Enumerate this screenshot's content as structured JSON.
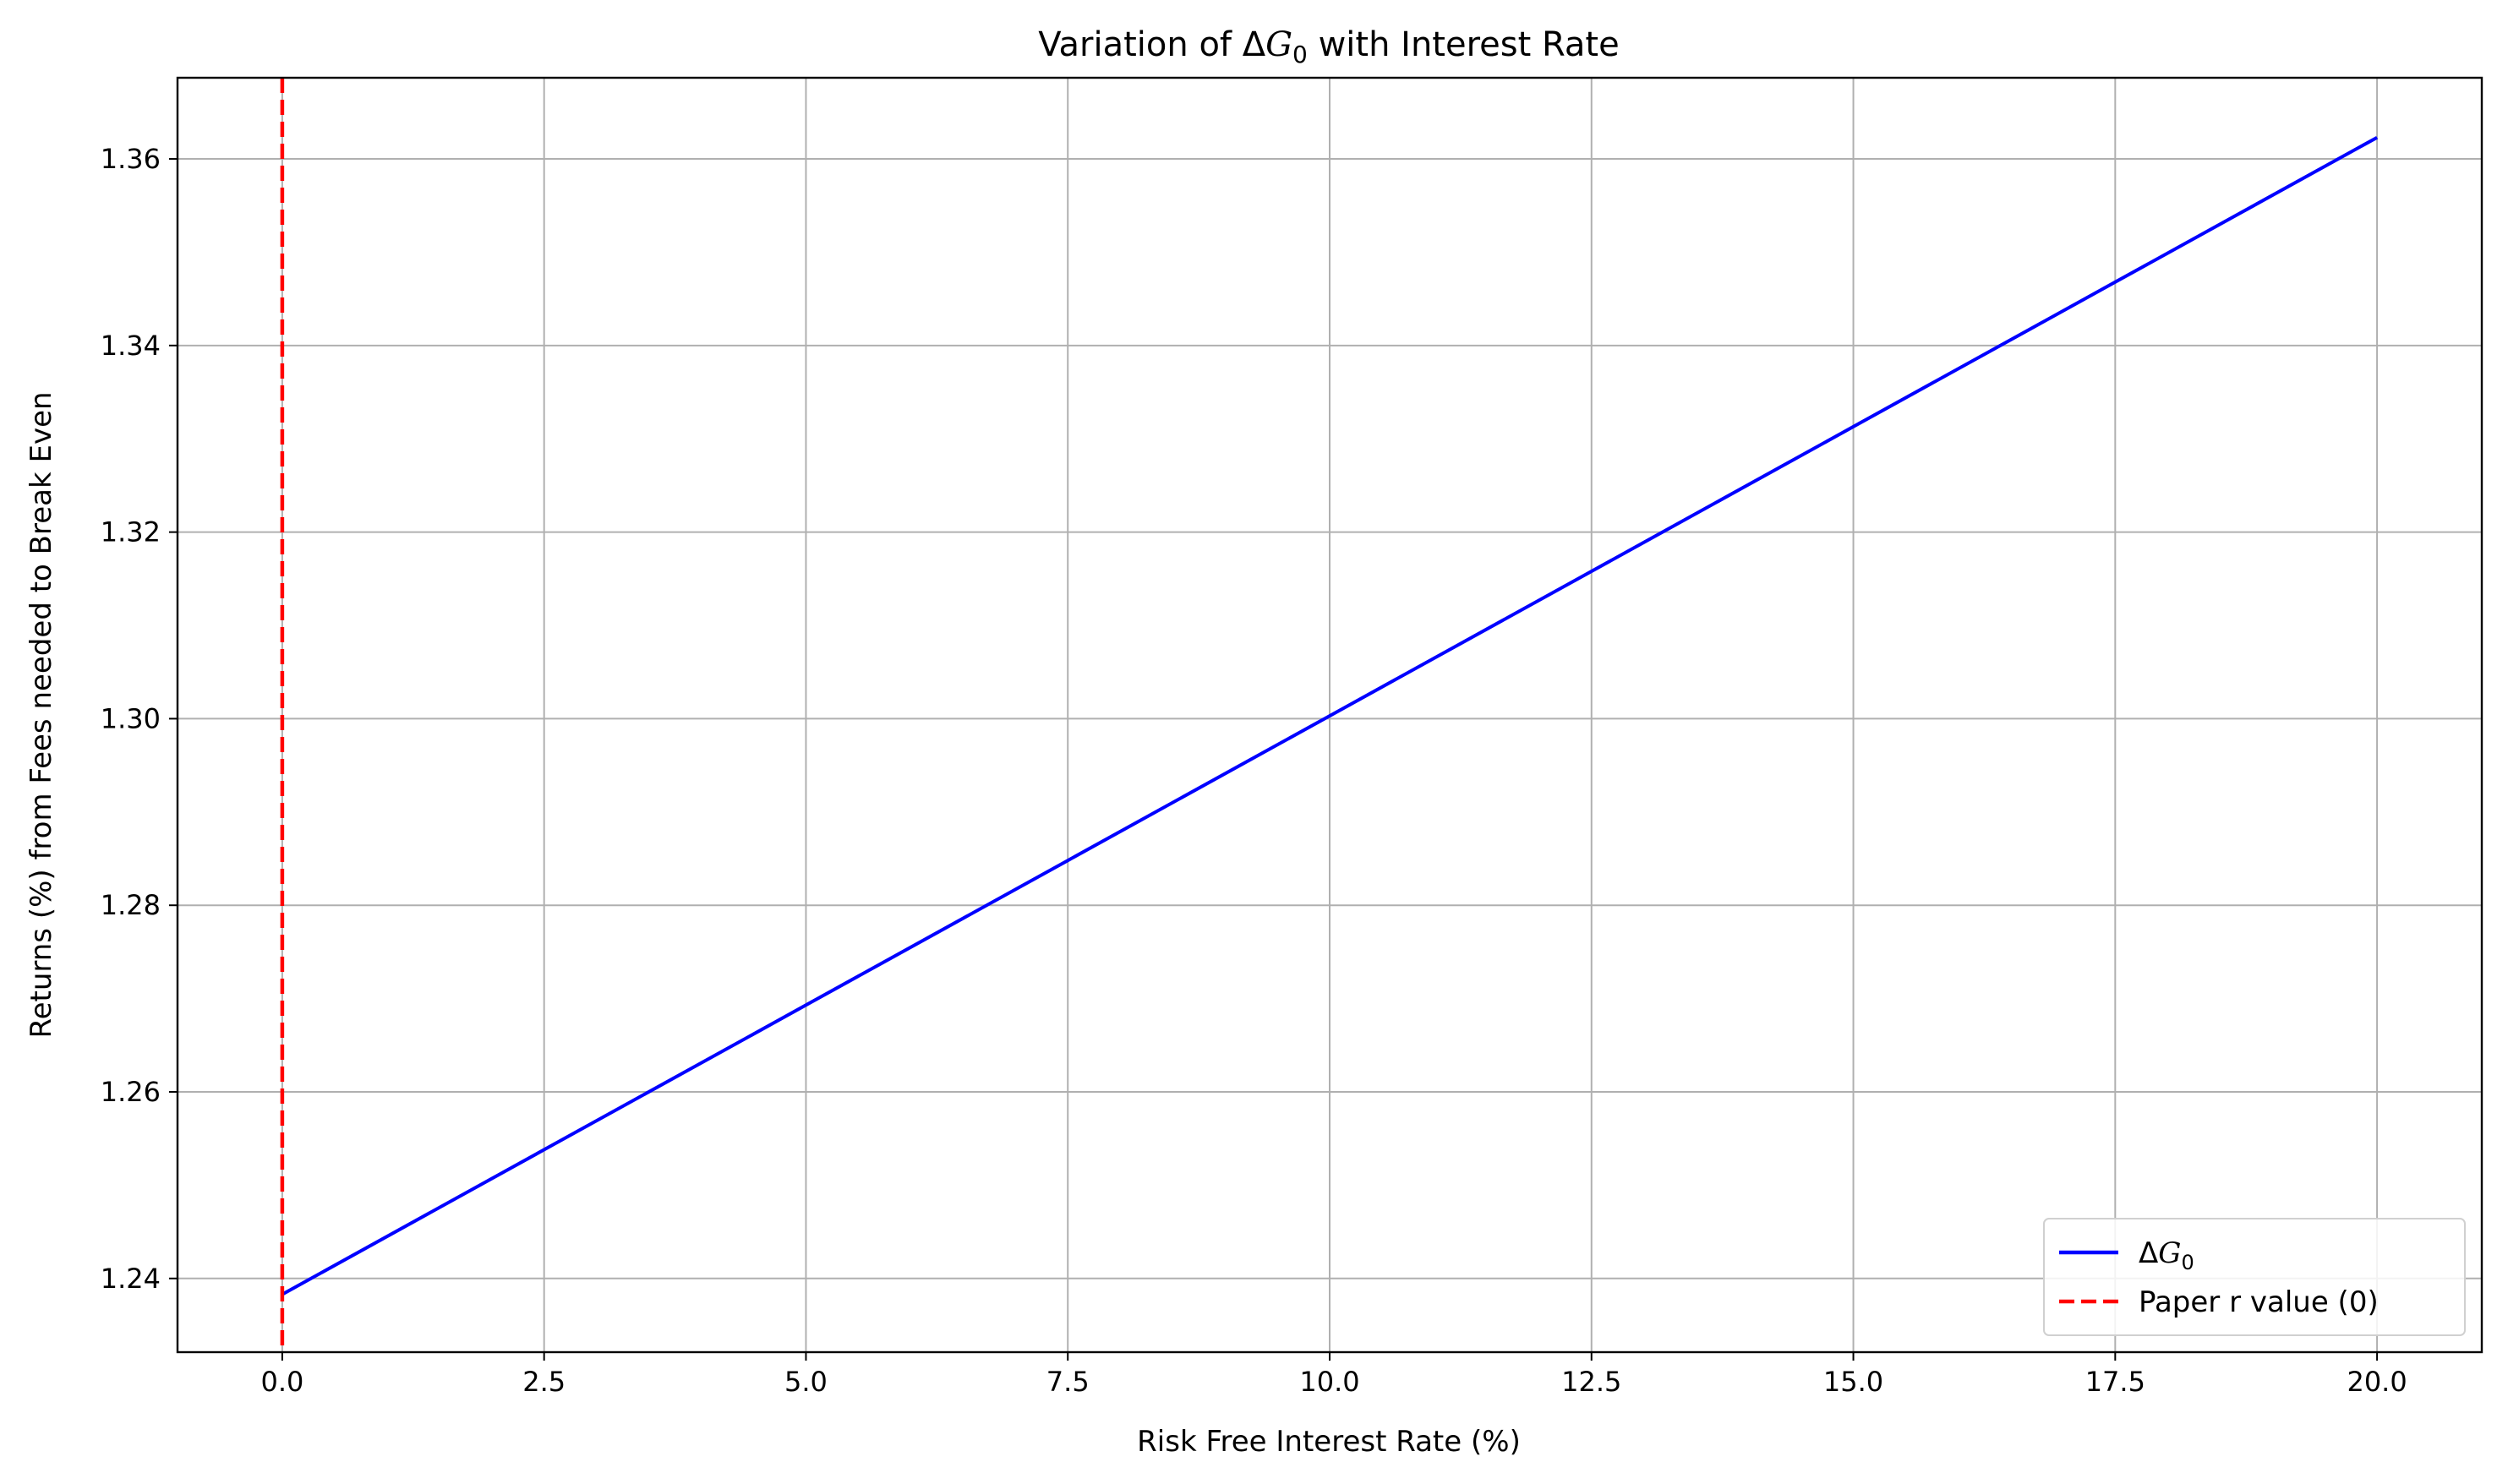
{
  "chart_data": {
    "type": "line",
    "title": "Variation of ΔG0 with Interest Rate",
    "title_parts": {
      "prefix": "Variation of Δ",
      "var": "G",
      "sub": "0",
      "suffix": " with Interest Rate"
    },
    "xlabel": "Risk Free Interest Rate (%)",
    "ylabel": "Returns (%) from Fees needed to Break Even",
    "xlim": [
      -1.0,
      21.0
    ],
    "ylim": [
      1.2321,
      1.3687
    ],
    "xticks": [
      0.0,
      2.5,
      5.0,
      7.5,
      10.0,
      12.5,
      15.0,
      17.5,
      20.0
    ],
    "xtick_labels": [
      "0.0",
      "2.5",
      "5.0",
      "7.5",
      "10.0",
      "12.5",
      "15.0",
      "17.5",
      "20.0"
    ],
    "yticks": [
      1.24,
      1.26,
      1.28,
      1.3,
      1.32,
      1.34,
      1.36
    ],
    "ytick_labels": [
      "1.24",
      "1.26",
      "1.28",
      "1.30",
      "1.32",
      "1.34",
      "1.36"
    ],
    "grid": true,
    "legend_position": "lower-right",
    "series": [
      {
        "name": "ΔG0",
        "name_parts": {
          "prefix": "Δ",
          "var": "G",
          "sub": "0"
        },
        "color": "#0000ff",
        "style": "solid",
        "x": [
          0.0,
          2.5,
          5.0,
          7.5,
          10.0,
          12.5,
          15.0,
          17.5,
          20.0
        ],
        "y": [
          1.2383,
          1.2538,
          1.2693,
          1.2848,
          1.3003,
          1.3158,
          1.3313,
          1.3468,
          1.3623
        ]
      }
    ],
    "vlines": [
      {
        "name": "Paper r value (0)",
        "x": 0.0,
        "color": "#ff0000",
        "style": "dashed"
      }
    ]
  }
}
